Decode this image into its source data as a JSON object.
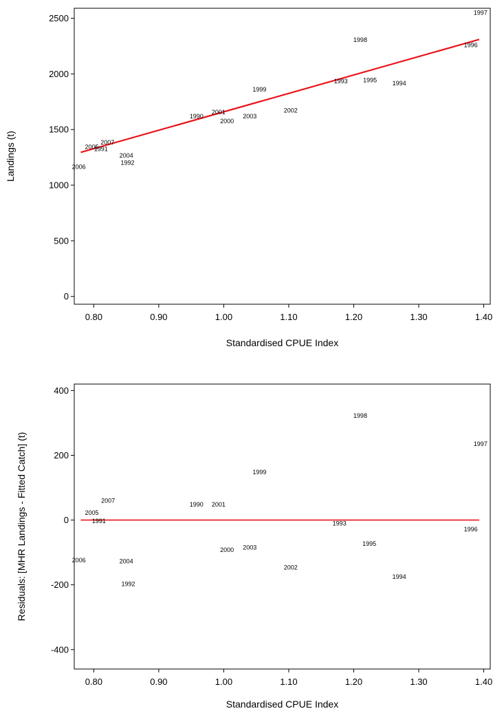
{
  "chart_data": [
    {
      "type": "scatter",
      "xlabel": "Standardised CPUE Index",
      "ylabel": "Landings (t)",
      "xlim": [
        0.77,
        1.41
      ],
      "ylim": [
        -70,
        2590
      ],
      "xticks": [
        "0.80",
        "0.90",
        "1.00",
        "1.10",
        "1.20",
        "1.30",
        "1.40"
      ],
      "xtick_values": [
        0.8,
        0.9,
        1.0,
        1.1,
        1.2,
        1.3,
        1.4
      ],
      "yticks": [
        "0",
        "500",
        "1000",
        "1500",
        "2000",
        "2500"
      ],
      "ytick_values": [
        0,
        500,
        1000,
        1500,
        2000,
        2500
      ],
      "grid": false,
      "marker": "year label",
      "points": [
        {
          "label": "1990",
          "x": 0.958,
          "y": 1620
        },
        {
          "label": "1991",
          "x": 0.811,
          "y": 1325
        },
        {
          "label": "1992",
          "x": 0.852,
          "y": 1200
        },
        {
          "label": "1993",
          "x": 1.18,
          "y": 1935
        },
        {
          "label": "1994",
          "x": 1.27,
          "y": 1915
        },
        {
          "label": "1995",
          "x": 1.225,
          "y": 1945
        },
        {
          "label": "1996",
          "x": 1.38,
          "y": 2260
        },
        {
          "label": "1997",
          "x": 1.395,
          "y": 2550
        },
        {
          "label": "1998",
          "x": 1.21,
          "y": 2305
        },
        {
          "label": "1999",
          "x": 1.055,
          "y": 1860
        },
        {
          "label": "2000",
          "x": 1.005,
          "y": 1575
        },
        {
          "label": "2001",
          "x": 0.992,
          "y": 1655
        },
        {
          "label": "2002",
          "x": 1.103,
          "y": 1670
        },
        {
          "label": "2003",
          "x": 1.04,
          "y": 1620
        },
        {
          "label": "2004",
          "x": 0.85,
          "y": 1265
        },
        {
          "label": "2005",
          "x": 0.797,
          "y": 1345
        },
        {
          "label": "2006",
          "x": 0.777,
          "y": 1165
        },
        {
          "label": "2007",
          "x": 0.821,
          "y": 1385
        }
      ],
      "fit_line": {
        "x": [
          0.78,
          1.393
        ],
        "y": [
          1295,
          2310
        ],
        "color": "#e8141a"
      }
    },
    {
      "type": "scatter",
      "xlabel": "Standardised CPUE Index",
      "ylabel": "Residuals: [MHR Landings - Fitted Catch] (t)",
      "xlim": [
        0.77,
        1.41
      ],
      "ylim": [
        -460,
        420
      ],
      "xticks": [
        "0.80",
        "0.90",
        "1.00",
        "1.10",
        "1.20",
        "1.30",
        "1.40"
      ],
      "xtick_values": [
        0.8,
        0.9,
        1.0,
        1.1,
        1.2,
        1.3,
        1.4
      ],
      "yticks": [
        "-400",
        "-200",
        "0",
        "200",
        "400"
      ],
      "ytick_values": [
        -400,
        -200,
        0,
        200,
        400
      ],
      "grid": false,
      "marker": "year label",
      "points": [
        {
          "label": "1990",
          "x": 0.958,
          "y": 48
        },
        {
          "label": "1991",
          "x": 0.808,
          "y": -3
        },
        {
          "label": "1992",
          "x": 0.853,
          "y": -198
        },
        {
          "label": "1993",
          "x": 1.178,
          "y": -10
        },
        {
          "label": "1994",
          "x": 1.27,
          "y": -175
        },
        {
          "label": "1995",
          "x": 1.224,
          "y": -73
        },
        {
          "label": "1996",
          "x": 1.38,
          "y": -28
        },
        {
          "label": "1997",
          "x": 1.395,
          "y": 235
        },
        {
          "label": "1998",
          "x": 1.21,
          "y": 322
        },
        {
          "label": "1999",
          "x": 1.055,
          "y": 148
        },
        {
          "label": "2000",
          "x": 1.005,
          "y": -92
        },
        {
          "label": "2001",
          "x": 0.992,
          "y": 48
        },
        {
          "label": "2002",
          "x": 1.103,
          "y": -147
        },
        {
          "label": "2003",
          "x": 1.04,
          "y": -85
        },
        {
          "label": "2004",
          "x": 0.85,
          "y": -127
        },
        {
          "label": "2005",
          "x": 0.797,
          "y": 23
        },
        {
          "label": "2006",
          "x": 0.777,
          "y": -124
        },
        {
          "label": "2007",
          "x": 0.822,
          "y": 60
        }
      ],
      "fit_line": {
        "x": [
          0.78,
          1.393
        ],
        "y": [
          0,
          0
        ],
        "color": "#e8141a"
      }
    }
  ]
}
